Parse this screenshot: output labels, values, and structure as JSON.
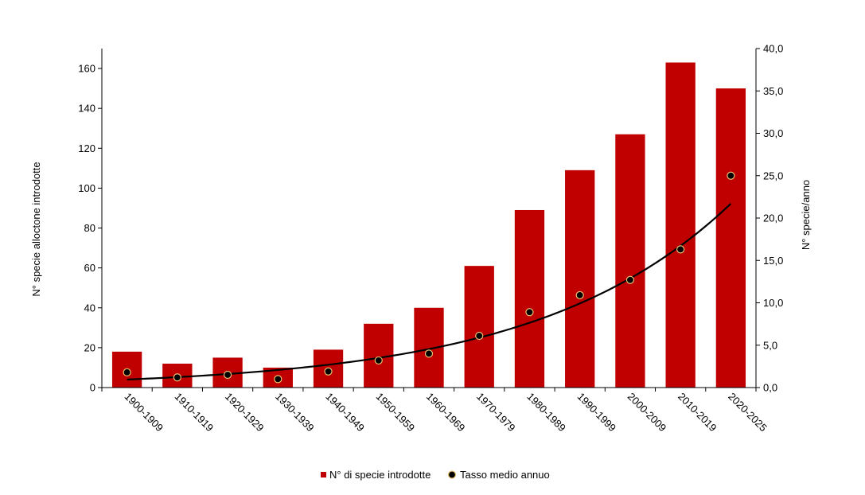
{
  "chart_data": {
    "type": "bar",
    "categories": [
      "1900-1909",
      "1910-1919",
      "1920-1929",
      "1930-1939",
      "1940-1949",
      "1950-1959",
      "1960-1969",
      "1970-1979",
      "1980-1989",
      "1990-1999",
      "2000-2009",
      "2010-2019",
      "2020-2025"
    ],
    "series": [
      {
        "name": "N° di specie introdotte",
        "type": "bar",
        "axis": "left",
        "color": "#c00000",
        "values": [
          18,
          12,
          15,
          10,
          19,
          32,
          40,
          61,
          89,
          109,
          127,
          163,
          150
        ]
      },
      {
        "name": "Tasso medio annuo",
        "type": "scatter",
        "axis": "right",
        "color": "#000000",
        "values": [
          1.8,
          1.2,
          1.5,
          1.0,
          1.9,
          3.2,
          4.0,
          6.1,
          8.9,
          10.9,
          12.7,
          16.3,
          25.0
        ]
      }
    ],
    "trendline": {
      "type": "exponential",
      "color": "#000000",
      "start": 0.95,
      "end": 21.7
    },
    "ylabel": "N° specie alloctone introdotte",
    "y2label": "N° specie/anno",
    "ylim": [
      0,
      170
    ],
    "yticks": [
      "0",
      "20",
      "40",
      "60",
      "80",
      "100",
      "120",
      "140",
      "160"
    ],
    "y2lim": [
      0,
      40
    ],
    "y2ticks": [
      "0,0",
      "5,0",
      "10,0",
      "15,0",
      "20,0",
      "25,0",
      "30,0",
      "35,0",
      "40,0"
    ],
    "grid": false,
    "legend_position": "bottom",
    "legend": {
      "bar_label": "N° di specie introdotte",
      "dot_label": "Tasso medio annuo"
    }
  }
}
